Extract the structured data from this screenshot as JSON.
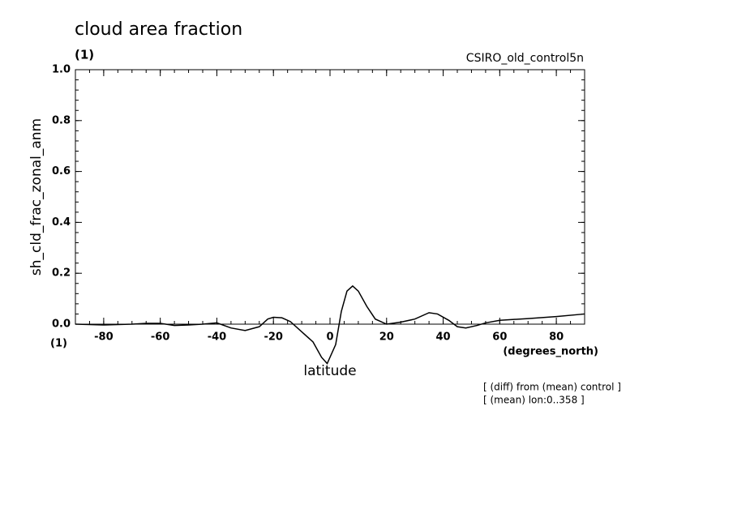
{
  "chart_data": {
    "type": "line",
    "title": "cloud area fraction",
    "units": "(1)",
    "dataset": "CSIRO_old_control5n",
    "y_label": "sh_cld_frac_zonal_anm",
    "x_units_left": "(1)",
    "x_units": "(degrees_north)",
    "x_label": "latitude",
    "notes": [
      "[ (diff) from (mean) control ]",
      "[ (mean) lon:0..358 ]"
    ],
    "color": "#000000",
    "xlim": [
      -90,
      90
    ],
    "ylim": [
      0,
      1
    ],
    "xticks": [
      -80,
      -60,
      -40,
      -20,
      0,
      20,
      40,
      60,
      80
    ],
    "yticks": [
      {
        "value": 0,
        "label": "0.0"
      },
      {
        "value": 0.2,
        "label": "0.2"
      },
      {
        "value": 0.4,
        "label": "0.4"
      },
      {
        "value": 0.6,
        "label": "0.6"
      },
      {
        "value": 0.8,
        "label": "0.8"
      },
      {
        "value": 1,
        "label": "1.0"
      }
    ],
    "x": [
      -90,
      -80,
      -70,
      -65,
      -60,
      -55,
      -50,
      -45,
      -40,
      -35,
      -30,
      -25,
      -22,
      -20,
      -17,
      -14,
      -10,
      -6,
      -3,
      -1,
      2,
      4,
      6,
      8,
      10,
      13,
      16,
      20,
      25,
      30,
      35,
      38,
      42,
      45,
      48,
      52,
      55,
      60,
      70,
      80,
      90
    ],
    "values": [
      0,
      -0.003,
      0,
      0.003,
      0.003,
      -0.005,
      -0.003,
      0,
      0.005,
      -0.015,
      -0.025,
      -0.01,
      0.02,
      0.027,
      0.025,
      0.01,
      -0.03,
      -0.07,
      -0.13,
      -0.155,
      -0.08,
      0.05,
      0.13,
      0.15,
      0.13,
      0.07,
      0.02,
      0,
      0.008,
      0.02,
      0.045,
      0.04,
      0.015,
      -0.01,
      -0.015,
      -0.005,
      0.005,
      0.015,
      0.022,
      0.03,
      0.04
    ]
  }
}
